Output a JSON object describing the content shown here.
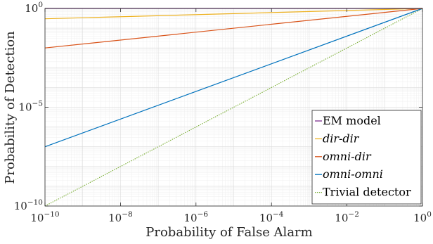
{
  "chart_data": {
    "type": "line",
    "xlabel": "Probability of False Alarm",
    "ylabel": "Probability of Detection",
    "xscale": "log",
    "yscale": "log",
    "xlim": [
      1e-10,
      1
    ],
    "ylim": [
      1e-10,
      1
    ],
    "grid": true,
    "legend_position": "bottom-right",
    "x_ticks": [
      {
        "base": "10",
        "exp": "−10"
      },
      {
        "base": "10",
        "exp": "−8"
      },
      {
        "base": "10",
        "exp": "−6"
      },
      {
        "base": "10",
        "exp": "−4"
      },
      {
        "base": "10",
        "exp": "−2"
      },
      {
        "base": "10",
        "exp": "0"
      }
    ],
    "x_tick_values": [
      -10,
      -8,
      -6,
      -4,
      -2,
      0
    ],
    "y_ticks": [
      {
        "base": "10",
        "exp": "0"
      },
      {
        "base": "10",
        "exp": "−5"
      },
      {
        "base": "10",
        "exp": "−10"
      }
    ],
    "y_tick_values": [
      0,
      -5,
      -10
    ],
    "series": [
      {
        "name": "EM model",
        "italic": false,
        "color": "#7E2F8E",
        "dash": "solid",
        "x": [
          1e-10,
          1
        ],
        "y": [
          1,
          1
        ]
      },
      {
        "name": "dir-dir",
        "italic": true,
        "color": "#EDB120",
        "dash": "solid",
        "x": [
          1e-10,
          1
        ],
        "y": [
          0.3,
          1
        ]
      },
      {
        "name": "omni-dir",
        "italic": true,
        "color": "#D95319",
        "dash": "solid",
        "x": [
          1e-10,
          1
        ],
        "y": [
          0.01,
          1
        ]
      },
      {
        "name": "omni-omni",
        "italic": true,
        "color": "#0072BD",
        "dash": "solid",
        "x": [
          1e-10,
          1
        ],
        "y": [
          1e-07,
          1
        ]
      },
      {
        "name": "Trivial detector",
        "italic": false,
        "color": "#77AC30",
        "dash": "dotted",
        "x": [
          1e-10,
          1
        ],
        "y": [
          1e-10,
          1
        ]
      }
    ]
  }
}
